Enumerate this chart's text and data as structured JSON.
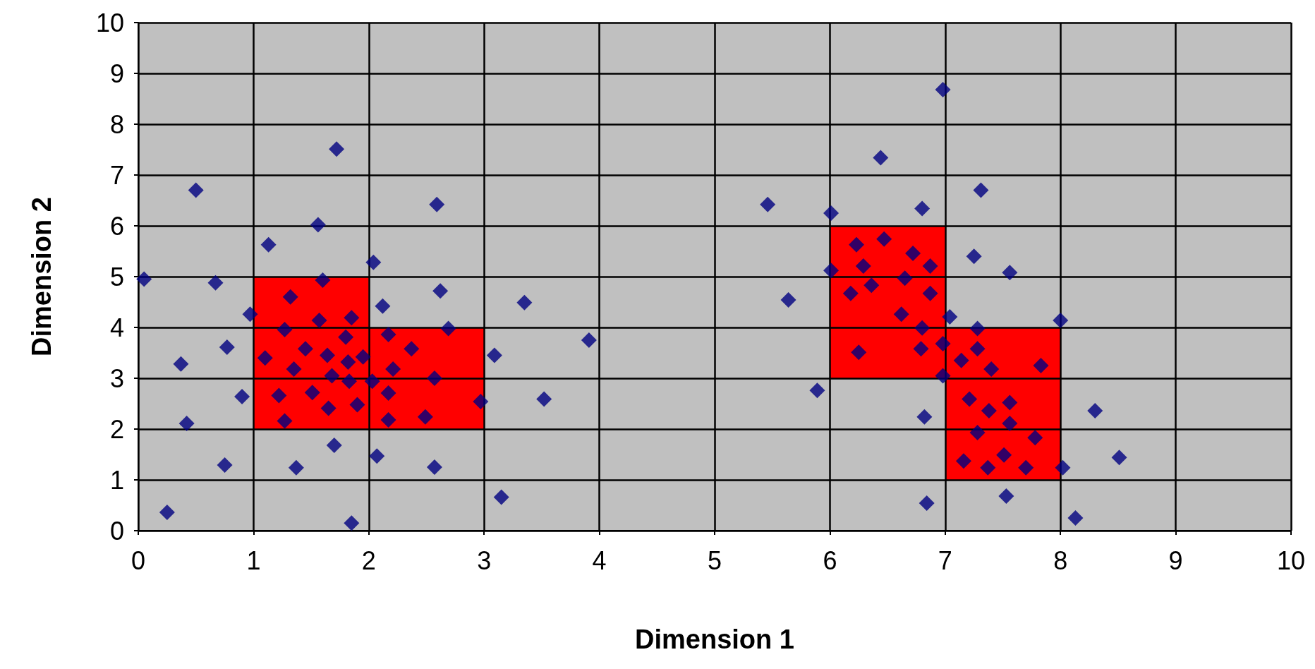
{
  "chart_data": {
    "type": "scatter",
    "xlabel": "Dimension 1",
    "ylabel": "Dimension 2",
    "xlim": [
      0,
      10
    ],
    "ylim": [
      0,
      10
    ],
    "xticks": [
      0,
      1,
      2,
      3,
      4,
      5,
      6,
      7,
      8,
      9,
      10
    ],
    "yticks": [
      0,
      1,
      2,
      3,
      4,
      5,
      6,
      7,
      8,
      9,
      10
    ],
    "grid": true,
    "marker": "diamond",
    "series": [
      {
        "type": "bar",
        "x": [
          1.5,
          2.5,
          6.5,
          7.5
        ],
        "base": [
          2,
          2,
          3,
          1
        ],
        "values": [
          3,
          2,
          3,
          3
        ],
        "color": "#ff0000"
      },
      {
        "color": "#000080",
        "x": [
          0.05,
          0.25,
          0.37,
          0.42,
          0.5,
          0.67,
          0.75,
          0.77,
          0.9,
          0.97,
          1.1,
          1.13,
          1.22,
          1.27,
          1.27,
          1.32,
          1.35,
          1.37,
          1.45,
          1.51,
          1.56,
          1.57,
          1.6,
          1.64,
          1.65,
          1.68,
          1.7,
          1.72,
          1.8,
          1.82,
          1.83,
          1.85,
          1.85,
          1.9,
          1.95,
          2.03,
          2.04,
          2.07,
          2.12,
          2.17,
          2.17,
          2.17,
          2.21,
          2.37,
          2.49,
          2.57,
          2.57,
          2.59,
          2.62,
          2.69,
          2.97,
          3.09,
          3.15,
          3.35,
          3.52,
          3.91,
          5.46,
          5.64,
          5.89,
          6.01,
          6.01,
          6.18,
          6.23,
          6.25,
          6.29,
          6.36,
          6.44,
          6.47,
          6.62,
          6.65,
          6.72,
          6.79,
          6.8,
          6.8,
          6.82,
          6.84,
          6.87,
          6.87,
          6.98,
          6.98,
          6.98,
          7.04,
          7.14,
          7.16,
          7.21,
          7.25,
          7.28,
          7.28,
          7.28,
          7.31,
          7.37,
          7.38,
          7.4,
          7.51,
          7.53,
          7.56,
          7.56,
          7.56,
          7.7,
          7.78,
          7.83,
          8.0,
          8.02,
          8.13,
          8.3,
          8.51
        ],
        "values": [
          4.95,
          0.36,
          3.28,
          2.11,
          6.7,
          4.88,
          1.29,
          3.61,
          2.64,
          4.26,
          3.4,
          5.63,
          2.66,
          3.96,
          2.16,
          4.6,
          3.18,
          1.24,
          3.58,
          2.72,
          6.02,
          4.14,
          4.93,
          3.45,
          2.41,
          3.05,
          1.68,
          7.51,
          3.81,
          3.32,
          2.94,
          4.19,
          0.15,
          2.48,
          3.42,
          2.94,
          5.28,
          1.47,
          4.42,
          2.71,
          3.86,
          2.18,
          3.18,
          3.58,
          2.24,
          3.0,
          1.25,
          6.42,
          4.72,
          3.98,
          2.54,
          3.45,
          0.66,
          4.49,
          2.59,
          3.75,
          6.42,
          4.54,
          2.76,
          6.25,
          5.12,
          4.67,
          5.63,
          3.51,
          5.21,
          4.83,
          7.34,
          5.74,
          4.26,
          4.97,
          5.46,
          3.58,
          3.99,
          6.34,
          2.24,
          0.54,
          5.21,
          4.67,
          8.68,
          3.68,
          3.05,
          4.21,
          3.35,
          1.37,
          2.59,
          5.4,
          1.93,
          3.98,
          3.58,
          6.7,
          1.24,
          2.36,
          3.18,
          1.49,
          0.68,
          2.52,
          5.08,
          2.11,
          1.24,
          1.83,
          3.25,
          4.14,
          1.24,
          0.25,
          2.36,
          1.44
        ]
      }
    ]
  }
}
